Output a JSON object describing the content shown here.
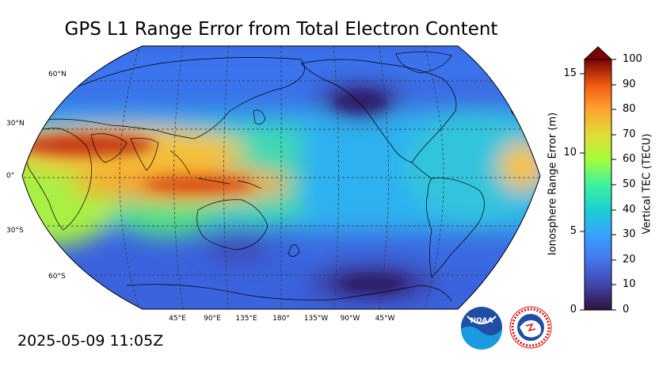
{
  "title": "GPS L1 Range Error from Total Electron Content",
  "timestamp": "2025-05-09 11:05Z",
  "map": {
    "projection": "robinson",
    "central_longitude": 180,
    "lat_labels": [
      "60°N",
      "30°N",
      "0°",
      "30°S",
      "60°S"
    ],
    "lon_labels": [
      "45°E",
      "90°E",
      "135°E",
      "180°",
      "135°W",
      "90°W",
      "45°W"
    ],
    "gridlines": "dashed"
  },
  "colorbar": {
    "left_axis_title": "Ionosphere Range Error (m)",
    "right_axis_title": "Vertical TEC (TECU)",
    "left_ticks": [
      "0",
      "5",
      "10",
      "15"
    ],
    "right_ticks": [
      "0",
      "10",
      "20",
      "30",
      "40",
      "50",
      "60",
      "70",
      "80",
      "90",
      "100"
    ],
    "extend": "max",
    "colormap": "turbo",
    "colors": [
      "#30123b",
      "#4662d7",
      "#36aaf9",
      "#1ae4b6",
      "#72fe5e",
      "#c8ef34",
      "#faba39",
      "#f66b19",
      "#ca2a04",
      "#7a0403"
    ]
  },
  "logos": [
    "NOAA",
    "NATIONAL WEATHER SERVICE"
  ]
}
